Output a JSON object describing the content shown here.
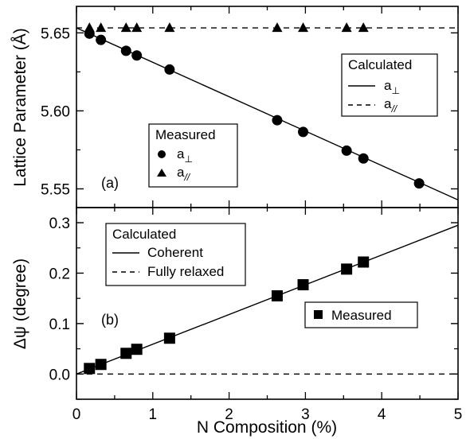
{
  "chart_data": [
    {
      "type": "scatter",
      "panel_label": "(a)",
      "ylabel": "Lattice Parameter (Å)",
      "xlim": [
        0,
        5
      ],
      "ylim": [
        5.538,
        5.667
      ],
      "yticks": [
        "5.55",
        "5.60",
        "5.65"
      ],
      "grid": false,
      "legend_measured": {
        "title": "Measured",
        "placement": "center-left",
        "entries": [
          {
            "marker": "circle",
            "label_main": "a",
            "label_sub": "⊥"
          },
          {
            "marker": "triangle",
            "label_main": "a",
            "label_sub": "//"
          }
        ]
      },
      "legend_calculated": {
        "title": "Calculated",
        "placement": "top-right",
        "entries": [
          {
            "line": "solid",
            "label_main": "a",
            "label_sub": "⊥"
          },
          {
            "line": "dashed",
            "label_main": "a",
            "label_sub": "//"
          }
        ]
      },
      "series": [
        {
          "marker": "circle",
          "points": [
            [
              0.17,
              5.6495
            ],
            [
              0.32,
              5.6455
            ],
            [
              0.65,
              5.6385
            ],
            [
              0.79,
              5.6355
            ],
            [
              1.22,
              5.6265
            ],
            [
              2.63,
              5.594
            ],
            [
              2.97,
              5.5865
            ],
            [
              3.54,
              5.5745
            ],
            [
              3.76,
              5.5695
            ],
            [
              4.49,
              5.5535
            ]
          ]
        },
        {
          "marker": "triangle",
          "points": [
            [
              0.17,
              5.6532
            ],
            [
              0.32,
              5.6532
            ],
            [
              0.65,
              5.6532
            ],
            [
              0.79,
              5.6532
            ],
            [
              1.22,
              5.6532
            ],
            [
              2.63,
              5.6532
            ],
            [
              2.97,
              5.6532
            ],
            [
              3.54,
              5.6532
            ],
            [
              3.76,
              5.6532
            ]
          ]
        }
      ],
      "lines": [
        {
          "style": "solid",
          "from": [
            0,
            5.6532
          ],
          "to": [
            5,
            5.5429
          ]
        },
        {
          "style": "dashed",
          "from": [
            0,
            5.6532
          ],
          "to": [
            5,
            5.6532
          ]
        }
      ]
    },
    {
      "type": "scatter",
      "panel_label": "(b)",
      "ylabel": "Δψ (degree)",
      "xlabel": "N Composition (%)",
      "xlim": [
        0,
        5
      ],
      "ylim": [
        -0.05,
        0.33
      ],
      "xticks": [
        "0",
        "1",
        "2",
        "3",
        "4",
        "5"
      ],
      "yticks": [
        "0.0",
        "0.1",
        "0.2",
        "0.3"
      ],
      "grid": false,
      "legend_calculated": {
        "title": "Calculated",
        "placement": "top-left",
        "entries": [
          {
            "line": "solid",
            "label": "Coherent"
          },
          {
            "line": "dashed",
            "label": "Fully relaxed"
          }
        ]
      },
      "legend_measured": {
        "placement": "center-right",
        "entries": [
          {
            "marker": "square",
            "label": "Measured"
          }
        ]
      },
      "series": [
        {
          "marker": "square",
          "points": [
            [
              0.17,
              0.011
            ],
            [
              0.32,
              0.019
            ],
            [
              0.65,
              0.041
            ],
            [
              0.79,
              0.049
            ],
            [
              1.22,
              0.071
            ],
            [
              2.63,
              0.155
            ],
            [
              2.97,
              0.177
            ],
            [
              3.54,
              0.208
            ],
            [
              3.76,
              0.222
            ]
          ]
        }
      ],
      "lines": [
        {
          "style": "solid",
          "from": [
            0,
            0.0
          ],
          "to": [
            5,
            0.295
          ]
        },
        {
          "style": "dashed",
          "from": [
            0,
            0.0
          ],
          "to": [
            5,
            0.0
          ]
        }
      ]
    }
  ]
}
